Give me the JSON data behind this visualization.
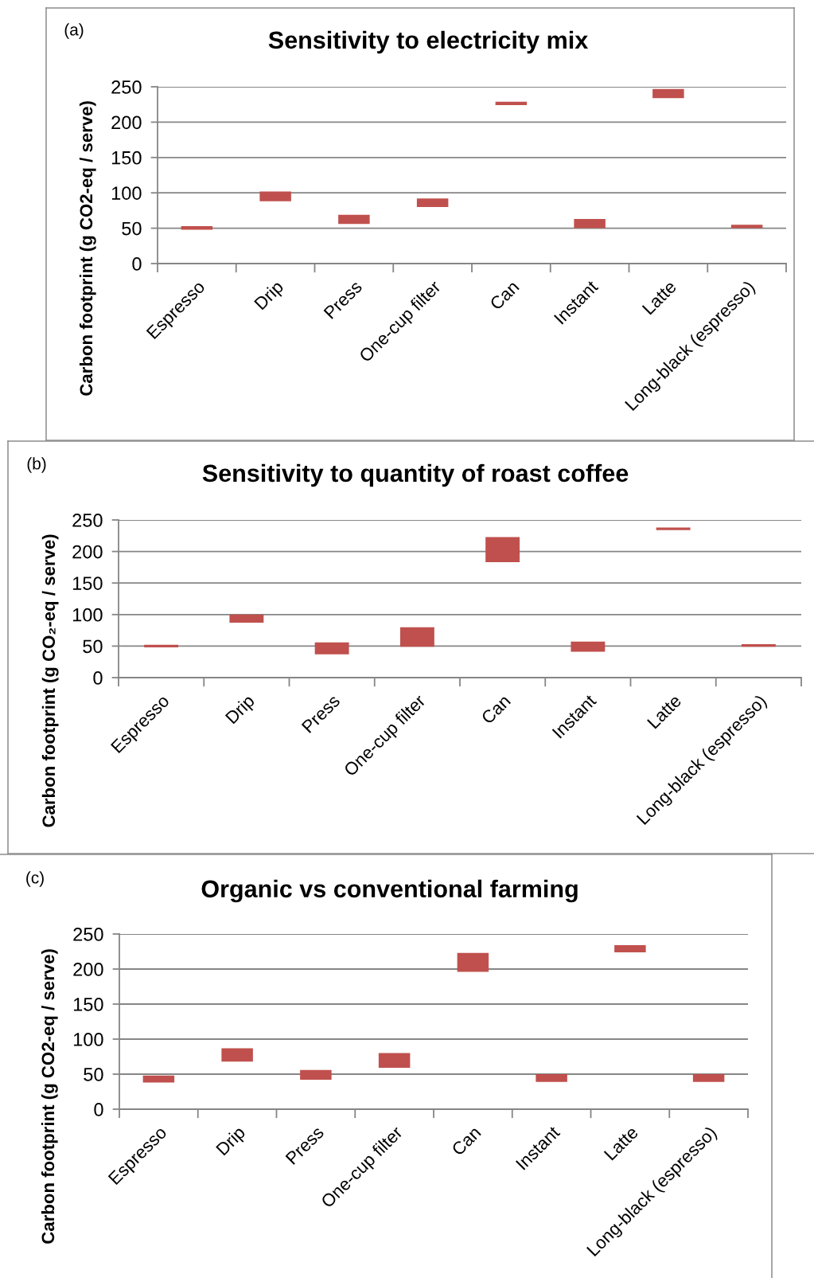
{
  "chart_data": [
    {
      "type": "bar",
      "title": "Sensitivity to electricity mix",
      "ylabel": "Carbon footprint (g CO2-eq / serve)",
      "annotations": [
        "(a)"
      ],
      "categories": [
        "Espresso",
        "Drip",
        "Press",
        "One-cup filter",
        "Can",
        "Instant",
        "Latte",
        "Long-black (espresso)"
      ],
      "base": [
        48,
        88,
        56,
        80,
        224,
        50,
        234,
        50
      ],
      "values": [
        5,
        14,
        13,
        12,
        5,
        13,
        13,
        5
      ],
      "color": "#c0504d",
      "ylim": [
        0,
        250
      ],
      "yticks": [
        0,
        50,
        100,
        150,
        200,
        250
      ],
      "grid": "y"
    },
    {
      "type": "bar",
      "title": "Sensitivity to quantity of roast coffee",
      "ylabel": "Carbon footprint (g CO₂-eq / serve)",
      "annotations": [
        "(b)"
      ],
      "categories": [
        "Espresso",
        "Drip",
        "Press",
        "One-cup filter",
        "Can",
        "Instant",
        "Latte",
        "Long-black (espresso)"
      ],
      "base": [
        48,
        87,
        37,
        49,
        183,
        41,
        234,
        49
      ],
      "values": [
        4,
        13,
        19,
        31,
        40,
        16,
        4,
        4
      ],
      "color": "#c0504d",
      "ylim": [
        0,
        250
      ],
      "yticks": [
        0,
        50,
        100,
        150,
        200,
        250
      ],
      "grid": "y"
    },
    {
      "type": "bar",
      "title": "Organic vs conventional farming",
      "ylabel": "Carbon footprint (g CO2-eq / serve)",
      "annotations": [
        "(c)"
      ],
      "categories": [
        "Espresso",
        "Drip",
        "Press",
        "One-cup filter",
        "Can",
        "Instant",
        "Latte",
        "Long-black (espresso)"
      ],
      "base": [
        38,
        68,
        42,
        59,
        196,
        39,
        224,
        39
      ],
      "values": [
        10,
        19,
        14,
        21,
        27,
        11,
        10,
        11
      ],
      "color": "#c0504d",
      "ylim": [
        0,
        250
      ],
      "yticks": [
        0,
        50,
        100,
        150,
        200,
        250
      ],
      "grid": "y"
    }
  ]
}
